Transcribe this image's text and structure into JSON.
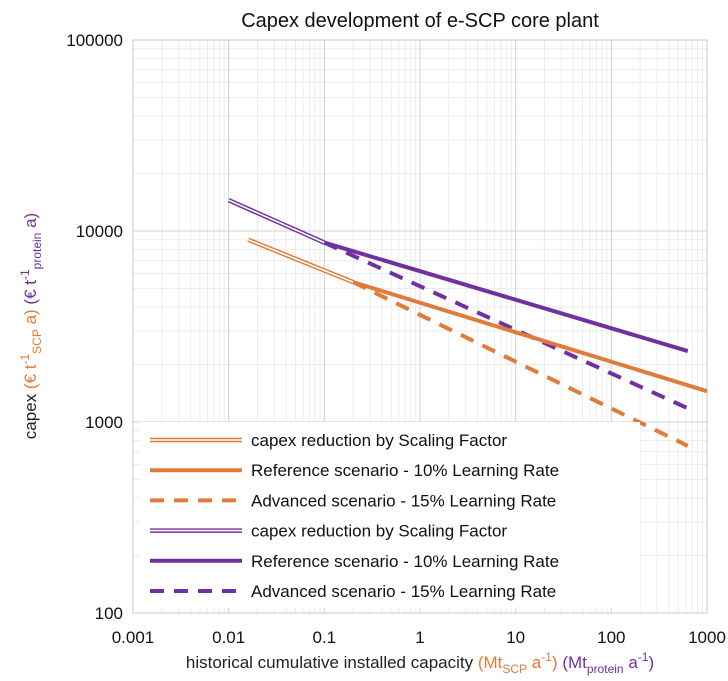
{
  "chart_data": {
    "type": "line",
    "title": "Capex development of e-SCP core plant",
    "x_scale": "log",
    "y_scale": "log",
    "xlim": [
      0.001,
      1000
    ],
    "ylim": [
      100,
      100000
    ],
    "x_ticks": [
      "0.001",
      "0.01",
      "0.1",
      "1",
      "10",
      "100",
      "1000"
    ],
    "y_ticks": [
      "100",
      "1000",
      "10000",
      "100000"
    ],
    "grid": true,
    "legend_position": "bottom-left",
    "xlabel": {
      "main": "historical cumulative installed capacity",
      "scp_prefix": "(Mt",
      "scp_sub": "SCP",
      "scp_tail": " a",
      "scp_sup": "-1",
      "scp_close": ")",
      "protein_prefix": "(Mt",
      "protein_sub": "protein",
      "protein_tail": " a",
      "protein_sup": "-1",
      "protein_close": ")"
    },
    "ylabel": {
      "main": "capex",
      "scp_prefix": "(€ t",
      "scp_sup": "-1",
      "scp_sub": "SCP",
      "scp_tail": " a)",
      "protein_prefix": "(€ t",
      "protein_sup": "-1",
      "protein_sub": "protein",
      "protein_tail": " a)"
    },
    "colors": {
      "scp": "#e07b39",
      "protein": "#7030a0"
    },
    "series": [
      {
        "name": "capex reduction by Scaling Factor",
        "group": "scp",
        "style": "double",
        "points": [
          [
            0.016,
            9000
          ],
          [
            0.2,
            5400
          ]
        ]
      },
      {
        "name": "Reference scenario - 10% Learning Rate",
        "group": "scp",
        "style": "solid",
        "points": [
          [
            0.2,
            5400
          ],
          [
            1000,
            1450
          ]
        ]
      },
      {
        "name": "Advanced scenario - 15% Learning Rate",
        "group": "scp",
        "style": "dashed",
        "points": [
          [
            0.2,
            5400
          ],
          [
            630,
            750
          ]
        ]
      },
      {
        "name": "capex reduction by Scaling Factor",
        "group": "protein",
        "style": "double",
        "points": [
          [
            0.01,
            14500
          ],
          [
            0.1,
            8700
          ]
        ]
      },
      {
        "name": "Reference scenario - 10% Learning Rate",
        "group": "protein",
        "style": "solid",
        "points": [
          [
            0.1,
            8700
          ],
          [
            630,
            2350
          ]
        ]
      },
      {
        "name": "Advanced scenario - 15% Learning Rate",
        "group": "protein",
        "style": "dashed",
        "points": [
          [
            0.1,
            8700
          ],
          [
            630,
            1180
          ]
        ]
      }
    ]
  }
}
